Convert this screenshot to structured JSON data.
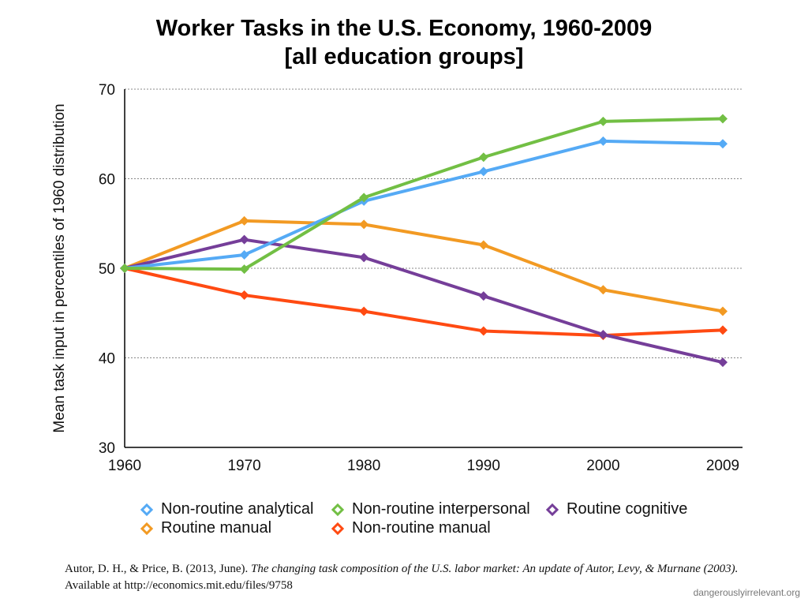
{
  "chart_data": {
    "type": "line",
    "title": "Worker Tasks in the U.S. Economy, 1960-2009",
    "subtitle": "[all education groups]",
    "xlabel": "",
    "ylabel": "Mean task input in percentiles of 1960 distribution",
    "categories": [
      "1960",
      "1970",
      "1980",
      "1990",
      "2000",
      "2009"
    ],
    "ylim": [
      30,
      70
    ],
    "yticks": [
      "30",
      "40",
      "50",
      "60",
      "70"
    ],
    "grid": true,
    "legend_position": "bottom",
    "series": [
      {
        "name": "Non-routine analytical",
        "color": "#55aaf5",
        "values": [
          50,
          51.5,
          57.5,
          60.8,
          64.2,
          63.9
        ]
      },
      {
        "name": "Non-routine interpersonal",
        "color": "#72bf44",
        "values": [
          50,
          49.9,
          57.9,
          62.4,
          66.4,
          66.7
        ]
      },
      {
        "name": "Routine cognitive",
        "color": "#753e99",
        "values": [
          50,
          53.2,
          51.2,
          46.9,
          42.6,
          39.5
        ]
      },
      {
        "name": "Routine manual",
        "color": "#f29a23",
        "values": [
          50,
          55.3,
          54.9,
          52.6,
          47.6,
          45.2
        ]
      },
      {
        "name": "Non-routine manual",
        "color": "#ff4a12",
        "values": [
          50,
          47.0,
          45.2,
          43.0,
          42.5,
          43.1
        ]
      }
    ]
  },
  "citation": {
    "authors": "Autor, D. H., & Price, B. (2013, June).",
    "work_title": "The changing task composition of the U.S. labor market: An update of Autor, Levy, & Murnane (2003).",
    "availability": "Available at http://economics.mit.edu/files/9758"
  },
  "credit": "dangerouslyirrelevant.org"
}
